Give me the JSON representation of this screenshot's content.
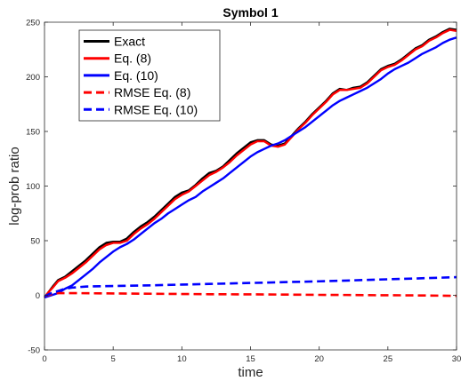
{
  "chart_data": {
    "type": "line",
    "title": "Symbol 1",
    "xlabel": "time",
    "ylabel": "log-prob ratio",
    "xlim": [
      0,
      30
    ],
    "ylim": [
      -50,
      250
    ],
    "xticks": [
      0,
      5,
      10,
      15,
      20,
      25,
      30
    ],
    "yticks": [
      -50,
      0,
      50,
      100,
      150,
      200,
      250
    ],
    "xtick_labels": [
      "0",
      "5",
      "10",
      "15",
      "20",
      "25",
      "30"
    ],
    "ytick_labels": [
      "-50",
      "0",
      "50",
      "100",
      "150",
      "200",
      "250"
    ],
    "grid": false,
    "legend_position": "top-left",
    "series": [
      {
        "name": "Exact",
        "color": "#000000",
        "style": "solid",
        "x": [
          0,
          0.3,
          0.6,
          1,
          1.5,
          2,
          2.5,
          3,
          3.5,
          4,
          4.5,
          5,
          5.5,
          6,
          6.5,
          7,
          7.5,
          8,
          8.5,
          9,
          9.5,
          10,
          10.5,
          11,
          11.5,
          12,
          12.5,
          13,
          13.5,
          14,
          14.5,
          15,
          15.5,
          16,
          16.5,
          17,
          17.5,
          18,
          18.5,
          19,
          19.5,
          20,
          20.5,
          21,
          21.5,
          22,
          22.5,
          23,
          23.5,
          24,
          24.5,
          25,
          25.5,
          26,
          26.5,
          27,
          27.5,
          28,
          28.5,
          29,
          29.5,
          30
        ],
        "values": [
          -2,
          3,
          8,
          14,
          17,
          22,
          27,
          32,
          38,
          44,
          48,
          49,
          49,
          52,
          58,
          63,
          67,
          72,
          78,
          84,
          90,
          94,
          96,
          101,
          107,
          112,
          114,
          118,
          124,
          130,
          135,
          140,
          142,
          142,
          138,
          137,
          139,
          146,
          153,
          159,
          166,
          172,
          178,
          185,
          189,
          188,
          190,
          191,
          195,
          201,
          207,
          210,
          212,
          216,
          221,
          226,
          229,
          234,
          237,
          241,
          244,
          243
        ]
      },
      {
        "name": "Eq. (8)",
        "color": "#ff0000",
        "style": "solid",
        "x": [
          0,
          0.3,
          0.6,
          1,
          1.5,
          2,
          2.5,
          3,
          3.5,
          4,
          4.5,
          5,
          5.5,
          6,
          6.5,
          7,
          7.5,
          8,
          8.5,
          9,
          9.5,
          10,
          10.5,
          11,
          11.5,
          12,
          12.5,
          13,
          13.5,
          14,
          14.5,
          15,
          15.5,
          16,
          16.5,
          17,
          17.5,
          18,
          18.5,
          19,
          19.5,
          20,
          20.5,
          21,
          21.5,
          22,
          22.5,
          23,
          23.5,
          24,
          24.5,
          25,
          25.5,
          26,
          26.5,
          27,
          27.5,
          28,
          28.5,
          29,
          29.5,
          30
        ],
        "values": [
          -2,
          3,
          7,
          13,
          16,
          20,
          25,
          30,
          36,
          42,
          46,
          48,
          48,
          50,
          56,
          61,
          65,
          70,
          76,
          82,
          88,
          92,
          95,
          100,
          105,
          110,
          113,
          117,
          122,
          128,
          133,
          138,
          141,
          141,
          137,
          136,
          138,
          145,
          152,
          158,
          165,
          171,
          177,
          184,
          188,
          188,
          189,
          190,
          194,
          200,
          206,
          209,
          211,
          215,
          220,
          225,
          228,
          233,
          236,
          240,
          243,
          242
        ]
      },
      {
        "name": "Eq. (10)",
        "color": "#0000ff",
        "style": "solid",
        "x": [
          0,
          0.5,
          1,
          1.5,
          2,
          2.5,
          3,
          3.5,
          4,
          4.5,
          5,
          5.5,
          6,
          6.5,
          7,
          7.5,
          8,
          8.5,
          9,
          9.5,
          10,
          10.5,
          11,
          11.5,
          12,
          12.5,
          13,
          13.5,
          14,
          14.5,
          15,
          15.5,
          16,
          16.5,
          17,
          17.5,
          18,
          18.5,
          19,
          19.5,
          20,
          20.5,
          21,
          21.5,
          22,
          22.5,
          23,
          23.5,
          24,
          24.5,
          25,
          25.5,
          26,
          26.5,
          27,
          27.5,
          28,
          28.5,
          29,
          29.5,
          30
        ],
        "values": [
          -2,
          0,
          2,
          6,
          9,
          14,
          19,
          24,
          30,
          35,
          40,
          44,
          47,
          51,
          56,
          61,
          66,
          70,
          75,
          79,
          83,
          87,
          90,
          95,
          99,
          103,
          107,
          112,
          117,
          122,
          127,
          131,
          134,
          137,
          139,
          142,
          146,
          150,
          154,
          159,
          164,
          169,
          174,
          178,
          181,
          184,
          187,
          190,
          194,
          198,
          203,
          207,
          210,
          213,
          217,
          221,
          224,
          227,
          231,
          234,
          236
        ]
      },
      {
        "name": "RMSE Eq. (8)",
        "color": "#ff0000",
        "style": "dashed",
        "x": [
          0,
          0.5,
          1,
          2,
          4,
          6,
          8,
          10,
          12,
          14,
          16,
          18,
          20,
          22,
          24,
          26,
          28,
          30
        ],
        "values": [
          -1,
          1,
          2,
          2,
          1.8,
          1.6,
          1.4,
          1.2,
          1.0,
          0.9,
          0.8,
          0.6,
          0.4,
          0.3,
          0.1,
          0,
          -0.2,
          -0.5
        ]
      },
      {
        "name": "RMSE Eq. (10)",
        "color": "#0000ff",
        "style": "dashed",
        "x": [
          0,
          0.5,
          1,
          1.5,
          2,
          3,
          4,
          6,
          8,
          10,
          12,
          14,
          16,
          18,
          20,
          22,
          24,
          26,
          28,
          30
        ],
        "values": [
          -1,
          2,
          4,
          6,
          7,
          8,
          8.3,
          8.7,
          9.2,
          9.8,
          10.4,
          11,
          11.6,
          12.2,
          12.8,
          13.5,
          14.3,
          15,
          15.8,
          16.6
        ]
      }
    ]
  }
}
